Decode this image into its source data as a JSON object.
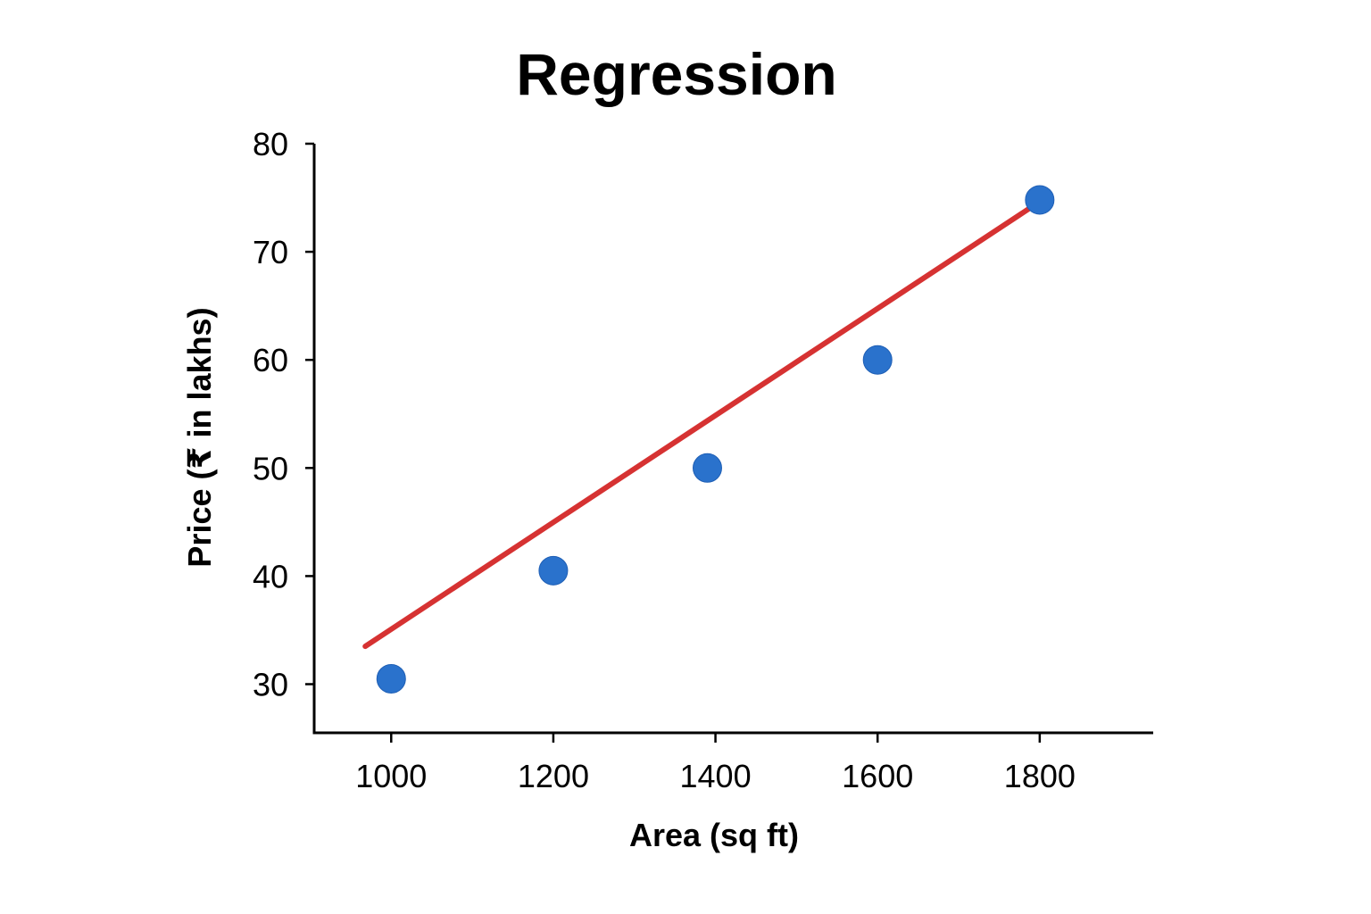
{
  "chart_data": {
    "type": "scatter",
    "title": "Regression",
    "xlabel": "Area (sq ft)",
    "ylabel": "Price (₹ in lakhs)",
    "xlim": [
      905,
      1940
    ],
    "ylim": [
      25.5,
      80
    ],
    "xticks": [
      1000,
      1200,
      1400,
      1600,
      1800
    ],
    "yticks": [
      30,
      40,
      50,
      60,
      70,
      80
    ],
    "grid": false,
    "series": [
      {
        "type": "scatter",
        "color": "#2a72cc",
        "points": [
          {
            "x": 1000,
            "y": 30.5
          },
          {
            "x": 1200,
            "y": 40.5
          },
          {
            "x": 1390,
            "y": 50
          },
          {
            "x": 1600,
            "y": 60
          },
          {
            "x": 1800,
            "y": 74.8
          }
        ]
      },
      {
        "type": "line",
        "color": "#d63232",
        "points": [
          {
            "x": 968,
            "y": 33.5
          },
          {
            "x": 1787,
            "y": 74
          }
        ]
      }
    ]
  }
}
